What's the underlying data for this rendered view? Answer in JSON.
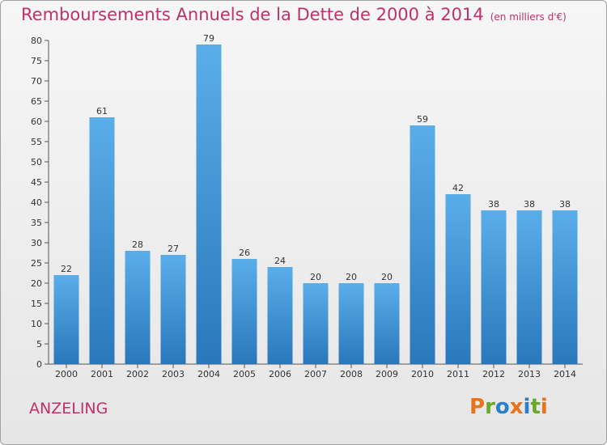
{
  "header": {
    "title": "Remboursements Annuels de la Dette de 2000 à 2014",
    "subtitle": "(en milliers d'€)"
  },
  "footer": {
    "place_name": "ANZELING",
    "logo_text": "Proxiti"
  },
  "colors": {
    "title": "#c0306a",
    "bar_top": "#5aaee8",
    "bar_bottom": "#2a78bb",
    "logo_letters": [
      "#e8731a",
      "#6aa82a",
      "#2a7fc8",
      "#e8731a",
      "#2a7fc8",
      "#6aa82a",
      "#e8731a"
    ]
  },
  "chart_data": {
    "type": "bar",
    "title": "Remboursements Annuels de la Dette de 2000 à 2014",
    "subtitle": "(en milliers d'€)",
    "categories": [
      "2000",
      "2001",
      "2002",
      "2003",
      "2004",
      "2005",
      "2006",
      "2007",
      "2008",
      "2009",
      "2010",
      "2011",
      "2012",
      "2013",
      "2014"
    ],
    "values": [
      22,
      61,
      28,
      27,
      79,
      26,
      24,
      20,
      20,
      20,
      59,
      42,
      38,
      38,
      38
    ],
    "ylim": [
      0,
      80
    ],
    "yticks": [
      0,
      5,
      10,
      15,
      20,
      25,
      30,
      35,
      40,
      45,
      50,
      55,
      60,
      65,
      70,
      75,
      80
    ],
    "grid": false,
    "data_labels": true
  }
}
